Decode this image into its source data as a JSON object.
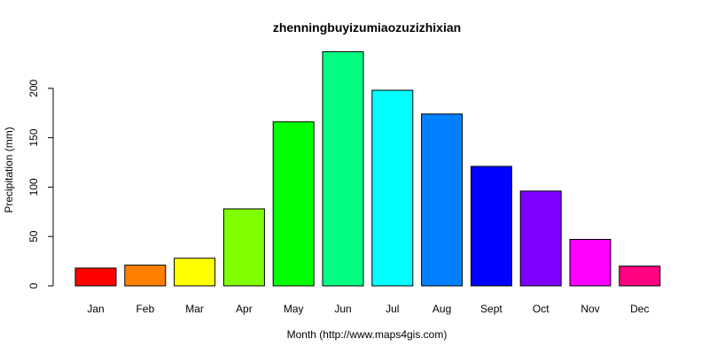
{
  "chart_data": {
    "type": "bar",
    "title": "zhenningbuyizumiaozuzizhixian",
    "xlabel": "Month (http://www.maps4gis.com)",
    "ylabel": "Precipitation (mm)",
    "ylim": [
      0,
      240
    ],
    "yticks": [
      0,
      50,
      100,
      150,
      200
    ],
    "grid": false,
    "categories": [
      "Jan",
      "Feb",
      "Mar",
      "Apr",
      "May",
      "Jun",
      "Jul",
      "Aug",
      "Sept",
      "Oct",
      "Nov",
      "Dec"
    ],
    "values": [
      18,
      21,
      28,
      78,
      166,
      237,
      198,
      174,
      121,
      96,
      47,
      20
    ],
    "colors": [
      "#FF0000",
      "#FF8000",
      "#FFFF00",
      "#80FF00",
      "#00FF00",
      "#00FF80",
      "#00FFFF",
      "#0080FF",
      "#0000FF",
      "#8000FF",
      "#FF00FF",
      "#FF0080"
    ]
  }
}
